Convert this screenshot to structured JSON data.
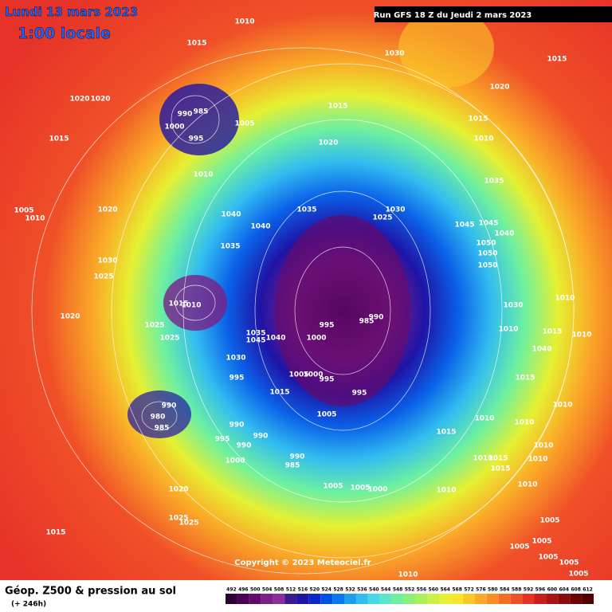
{
  "header": {
    "date": "Lundi 13 mars 2023",
    "time": "1:00 locale",
    "run": "Run GFS 18 Z du Jeudi 2 mars 2023"
  },
  "map": {
    "pressure_labels": [
      "1010",
      "1015",
      "1030",
      "1015",
      "1020",
      "1020",
      "985",
      "990",
      "1000",
      "995",
      "1005",
      "1015",
      "1020",
      "1015",
      "1010",
      "1015",
      "1020",
      "1010",
      "1035",
      "1005",
      "1010",
      "1020",
      "1040",
      "1040",
      "1035",
      "1030",
      "1025",
      "1045",
      "1045",
      "1040",
      "1050",
      "1035",
      "1050",
      "1030",
      "1025",
      "1050",
      "1015",
      "1010",
      "1030",
      "1010",
      "1020",
      "1025",
      "1025",
      "995",
      "990",
      "985",
      "1000",
      "1040",
      "1035",
      "1045",
      "1030",
      "1010",
      "1015",
      "1040",
      "1010",
      "1005",
      "1000",
      "995",
      "995",
      "1015",
      "995",
      "1015",
      "990",
      "980",
      "985",
      "1005",
      "1010",
      "1010",
      "1010",
      "1015",
      "990",
      "995",
      "990",
      "990",
      "1010",
      "1015",
      "1015",
      "1010",
      "1010",
      "1000",
      "990",
      "985",
      "1005",
      "1005",
      "1000",
      "1010",
      "1010",
      "1020",
      "1025",
      "1025",
      "1005",
      "1015",
      "1005",
      "1005",
      "1005",
      "1005",
      "1010",
      "1005"
    ]
  },
  "copyright": "Copyright © 2023 Meteociel.fr",
  "footer": {
    "title": "Géop. Z500 & pression au sol",
    "lead": "(+ 246h)"
  },
  "legend": {
    "values": [
      492,
      496,
      500,
      504,
      508,
      512,
      516,
      520,
      524,
      528,
      532,
      536,
      540,
      544,
      548,
      552,
      556,
      560,
      564,
      568,
      572,
      576,
      580,
      584,
      588,
      592,
      596,
      600,
      604,
      608,
      612
    ],
    "colors": [
      "#2a0033",
      "#4b0055",
      "#640a6e",
      "#7a1f86",
      "#8c2e9a",
      "#3a1a8c",
      "#1e14a6",
      "#0a28c8",
      "#0050e6",
      "#0a78f0",
      "#1e9cf0",
      "#32bcf0",
      "#46d8e6",
      "#5ae6c8",
      "#6ef0a0",
      "#8cf078",
      "#aaf05a",
      "#c8f046",
      "#e6f032",
      "#fae628",
      "#fac828",
      "#faaa28",
      "#fa8c28",
      "#f56e28",
      "#f05028",
      "#e63228",
      "#c81e1e",
      "#aa1414",
      "#8c0a0a",
      "#6e0505",
      "#500000"
    ]
  }
}
